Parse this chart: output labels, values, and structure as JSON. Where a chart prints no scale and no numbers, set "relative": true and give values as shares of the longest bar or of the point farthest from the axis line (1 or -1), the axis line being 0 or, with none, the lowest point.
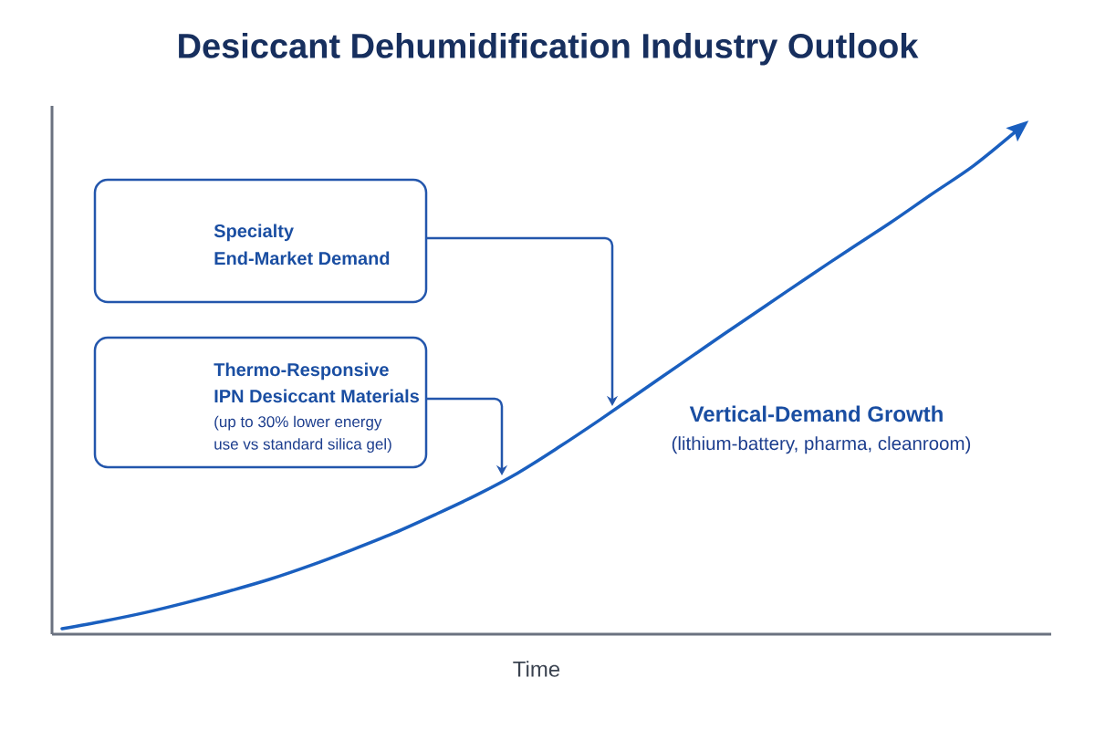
{
  "chart_data": {
    "type": "line",
    "title": "Desiccant Dehumidification Industry Outlook",
    "xlabel": "Time",
    "categories": [
      null,
      null,
      null,
      null,
      null,
      null,
      null,
      null,
      null,
      null,
      null,
      null,
      null,
      null,
      null,
      null,
      null,
      null,
      null,
      null,
      null,
      null,
      null,
      null
    ],
    "series": [
      {
        "color": "#1a5fbf",
        "values": [
          0.011,
          0.026,
          0.043,
          0.063,
          0.085,
          0.109,
          0.137,
          0.168,
          0.201,
          0.238,
          0.277,
          0.321,
          0.373,
          0.428,
          0.485,
          0.542,
          0.599,
          0.655,
          0.711,
          0.766,
          0.82,
          0.877,
          0.933,
          1
        ]
      }
    ],
    "relative": true,
    "marker": "none",
    "line_style": "solid",
    "annotations": [
      "Specialty End-Market Demand",
      "Thermo-Responsive IPN Desiccant Materials",
      "(up to 30% lower energy use vs standard silica gel)",
      "Vertical-Demand Growth",
      "(lithium-battery, pharma, cleanroom)"
    ]
  }
}
